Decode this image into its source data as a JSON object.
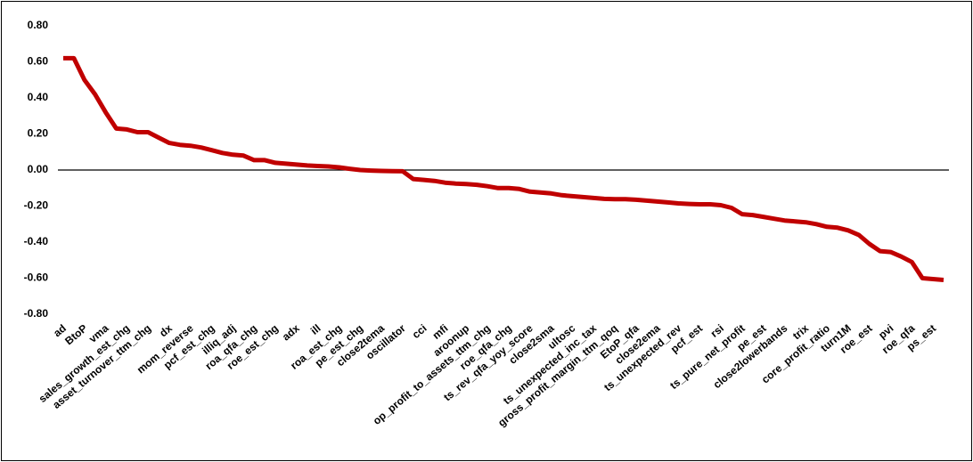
{
  "chart_data": {
    "type": "line",
    "categories": [
      "ad",
      null,
      "BtoP",
      null,
      "vma",
      null,
      "sales_growth_est_chg",
      null,
      "asset_turnover_ttm_chg",
      null,
      "dx",
      null,
      "mom_reverse",
      null,
      "pcf_est_chg",
      null,
      "illiq_adj",
      null,
      "roa_qfa_chg",
      null,
      "roe_est_chg",
      null,
      "adx",
      null,
      "ill",
      null,
      "roa_est_chg",
      null,
      "pe_est_chg",
      null,
      "close2tema",
      null,
      "oscillator",
      null,
      "cci",
      null,
      "mfi",
      null,
      "aroonup",
      null,
      "op_profit_to_assets_ttm_chg",
      null,
      "roe_qfa_chg",
      null,
      "ts_rev_qfa_yoy_score",
      null,
      "close2sma",
      null,
      "ultosc",
      null,
      "ts_unexpected_inc_tax",
      null,
      "gross_profit_margin_ttm_qoq",
      null,
      "EtoP_qfa",
      null,
      "close2ema",
      null,
      "ts_unexpected_rev",
      null,
      "pcf_est",
      null,
      "rsi",
      null,
      "ts_pure_net_profit",
      null,
      "pe_est",
      null,
      "close2lowerbands",
      null,
      "trix",
      null,
      "core_profit_ratio",
      null,
      "turn1M",
      null,
      "roe_est",
      null,
      "pvi",
      null,
      "roe_qfa",
      null,
      "ps_est",
      null
    ],
    "values": [
      0.62,
      0.62,
      0.5,
      0.42,
      0.32,
      0.23,
      0.225,
      0.21,
      0.21,
      0.18,
      0.15,
      0.14,
      0.135,
      0.125,
      0.11,
      0.095,
      0.085,
      0.08,
      0.055,
      0.055,
      0.04,
      0.035,
      0.03,
      0.025,
      0.022,
      0.02,
      0.015,
      0.007,
      0.0,
      -0.003,
      -0.005,
      -0.006,
      -0.007,
      -0.05,
      -0.055,
      -0.06,
      -0.07,
      -0.075,
      -0.078,
      -0.082,
      -0.09,
      -0.1,
      -0.1,
      -0.105,
      -0.12,
      -0.125,
      -0.13,
      -0.14,
      -0.145,
      -0.15,
      -0.155,
      -0.16,
      -0.162,
      -0.162,
      -0.165,
      -0.17,
      -0.175,
      -0.18,
      -0.185,
      -0.188,
      -0.19,
      -0.19,
      -0.195,
      -0.21,
      -0.245,
      -0.25,
      -0.26,
      -0.27,
      -0.28,
      -0.285,
      -0.29,
      -0.3,
      -0.315,
      -0.32,
      -0.335,
      -0.36,
      -0.41,
      -0.45,
      -0.455,
      -0.48,
      -0.51,
      -0.6,
      -0.605,
      -0.61
    ],
    "color": "#c00000",
    "ylim": [
      -0.8,
      0.8
    ],
    "yticks": [
      {
        "value": 0.8,
        "label": "0.80"
      },
      {
        "value": 0.6,
        "label": "0.60"
      },
      {
        "value": 0.4,
        "label": "0.40"
      },
      {
        "value": 0.2,
        "label": "0.20"
      },
      {
        "value": 0,
        "label": "0.00"
      },
      {
        "value": -0.2,
        "label": "-0.20"
      },
      {
        "value": -0.4,
        "label": "-0.40"
      },
      {
        "value": -0.6,
        "label": "-0.60"
      },
      {
        "value": -0.8,
        "label": "-0.80"
      }
    ]
  }
}
